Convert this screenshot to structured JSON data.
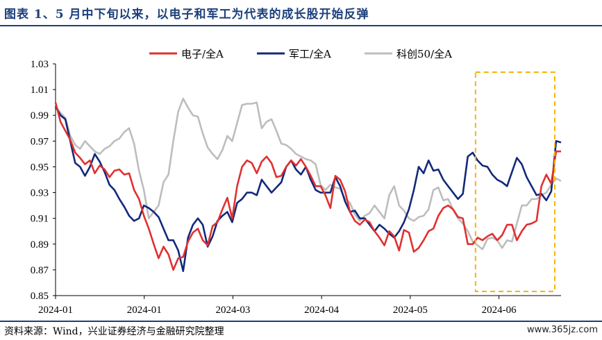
{
  "title": "图表 1、5 月中下旬以来，以电子和军工为代表的成长股开始反弹",
  "source": "资料来源：Wind，兴业证券经济与金融研究院整理",
  "watermark": "www.365jz.com",
  "colors": {
    "accent": "#1c3f7a",
    "highlight_box": "#f5b400"
  },
  "chart_data": {
    "type": "line",
    "x_tick_labels": [
      "2024-01",
      "2024-01",
      "2024-03",
      "2024-04",
      "2024-05",
      "2024-06"
    ],
    "ylim": [
      0.85,
      1.03
    ],
    "y_ticks": [
      0.85,
      0.87,
      0.89,
      0.91,
      0.93,
      0.95,
      0.97,
      0.99,
      1.01,
      1.03
    ],
    "grid": false,
    "legend_position": "top",
    "highlight": {
      "x_start": 86,
      "x_end": 102,
      "style": "dashed box",
      "color": "#f5b400"
    },
    "series": [
      {
        "name": "电子/全A",
        "color": "#e03030",
        "values": [
          1.0,
          0.985,
          0.978,
          0.971,
          0.961,
          0.957,
          0.952,
          0.955,
          0.945,
          0.951,
          0.948,
          0.942,
          0.947,
          0.948,
          0.944,
          0.945,
          0.932,
          0.925,
          0.912,
          0.902,
          0.89,
          0.879,
          0.888,
          0.882,
          0.87,
          0.879,
          0.88,
          0.892,
          0.899,
          0.902,
          0.893,
          0.889,
          0.904,
          0.907,
          0.917,
          0.926,
          0.91,
          0.935,
          0.95,
          0.955,
          0.953,
          0.945,
          0.954,
          0.958,
          0.953,
          0.942,
          0.943,
          0.95,
          0.955,
          0.951,
          0.956,
          0.95,
          0.943,
          0.935,
          0.935,
          0.928,
          0.918,
          0.943,
          0.94,
          0.931,
          0.915,
          0.908,
          0.905,
          0.909,
          0.907,
          0.9,
          0.895,
          0.889,
          0.9,
          0.896,
          0.885,
          0.901,
          0.899,
          0.884,
          0.887,
          0.893,
          0.9,
          0.902,
          0.912,
          0.918,
          0.92,
          0.917,
          0.911,
          0.91,
          0.89,
          0.89,
          0.895,
          0.893,
          0.896,
          0.898,
          0.893,
          0.897,
          0.905,
          0.905,
          0.893,
          0.9,
          0.905,
          0.906,
          0.908,
          0.935,
          0.944,
          0.937,
          0.962,
          0.962
        ]
      },
      {
        "name": "军工/全A",
        "color": "#13287a",
        "values": [
          0.997,
          0.99,
          0.987,
          0.97,
          0.953,
          0.95,
          0.943,
          0.95,
          0.96,
          0.954,
          0.946,
          0.936,
          0.932,
          0.925,
          0.919,
          0.912,
          0.908,
          0.91,
          0.92,
          0.918,
          0.915,
          0.911,
          0.902,
          0.893,
          0.893,
          0.885,
          0.869,
          0.895,
          0.905,
          0.91,
          0.905,
          0.888,
          0.896,
          0.908,
          0.912,
          0.915,
          0.907,
          0.922,
          0.925,
          0.93,
          0.93,
          0.928,
          0.94,
          0.935,
          0.93,
          0.934,
          0.938,
          0.95,
          0.955,
          0.948,
          0.944,
          0.95,
          0.94,
          0.932,
          0.93,
          0.93,
          0.93,
          0.942,
          0.935,
          0.923,
          0.915,
          0.916,
          0.91,
          0.91,
          0.905,
          0.9,
          0.905,
          0.902,
          0.898,
          0.895,
          0.9,
          0.907,
          0.917,
          0.932,
          0.95,
          0.945,
          0.955,
          0.947,
          0.948,
          0.94,
          0.935,
          0.93,
          0.925,
          0.929,
          0.958,
          0.961,
          0.955,
          0.951,
          0.95,
          0.944,
          0.94,
          0.938,
          0.935,
          0.946,
          0.957,
          0.952,
          0.942,
          0.935,
          0.928,
          0.929,
          0.924,
          0.931,
          0.97,
          0.969
        ]
      },
      {
        "name": "科创50/全A",
        "color": "#bdbdbd",
        "values": [
          0.997,
          0.992,
          0.988,
          0.974,
          0.967,
          0.964,
          0.97,
          0.966,
          0.962,
          0.96,
          0.964,
          0.966,
          0.97,
          0.972,
          0.977,
          0.98,
          0.968,
          0.947,
          0.932,
          0.91,
          0.915,
          0.92,
          0.938,
          0.944,
          0.97,
          0.993,
          1.003,
          0.996,
          0.99,
          0.989,
          0.976,
          0.965,
          0.96,
          0.956,
          0.963,
          0.974,
          0.97,
          0.984,
          0.998,
          0.999,
          0.999,
          1.0,
          0.98,
          0.985,
          0.987,
          0.978,
          0.968,
          0.967,
          0.964,
          0.96,
          0.958,
          0.956,
          0.955,
          0.952,
          0.936,
          0.932,
          0.936,
          0.934,
          0.933,
          0.925,
          0.922,
          0.913,
          0.908,
          0.912,
          0.914,
          0.92,
          0.915,
          0.91,
          0.928,
          0.935,
          0.92,
          0.916,
          0.91,
          0.908,
          0.911,
          0.912,
          0.917,
          0.932,
          0.934,
          0.924,
          0.925,
          0.917,
          0.91,
          0.906,
          0.9,
          0.892,
          0.889,
          0.886,
          0.894,
          0.895,
          0.893,
          0.887,
          0.893,
          0.892,
          0.906,
          0.92,
          0.92,
          0.925,
          0.925,
          0.928,
          0.93,
          0.936,
          0.941,
          0.939
        ]
      }
    ]
  }
}
